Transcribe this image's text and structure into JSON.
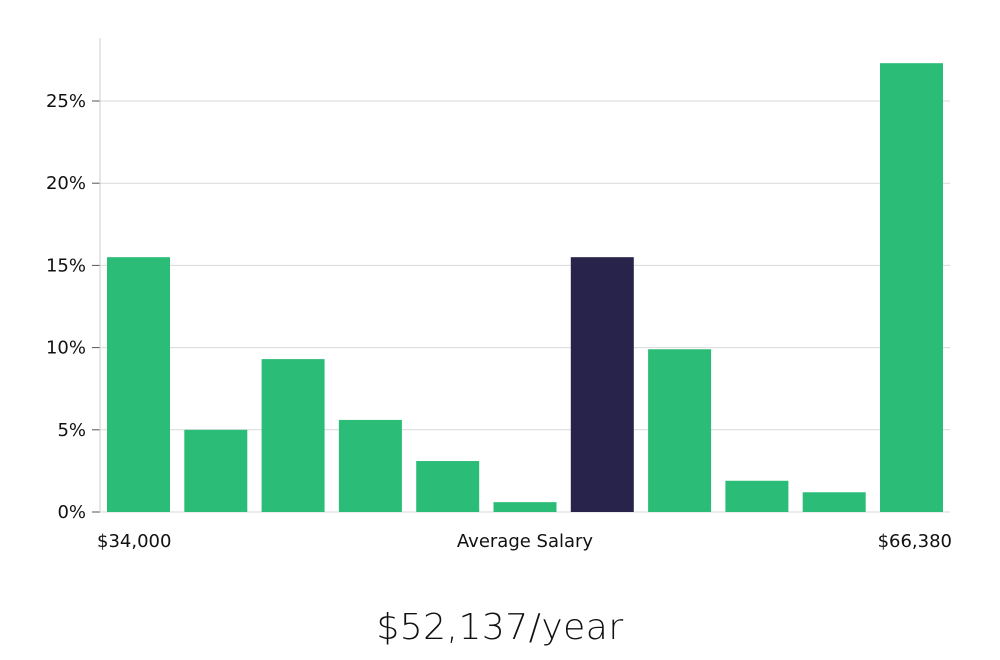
{
  "chart_data": {
    "type": "bar",
    "title": "",
    "xlabel": "Average Salary",
    "ylabel": "",
    "x_min_label": "$34,000",
    "x_max_label": "$66,380",
    "ylim": [
      0,
      28
    ],
    "yticks": [
      0,
      5,
      10,
      15,
      20,
      25
    ],
    "ytick_labels": [
      "0%",
      "5%",
      "10%",
      "15%",
      "20%",
      "25%"
    ],
    "grid": true,
    "highlight_index": 6,
    "colors": {
      "bar": "#2bbd78",
      "highlight": "#28234a",
      "grid": "#d9d9d9",
      "axis": "#cccccc"
    },
    "values": [
      15.5,
      5.0,
      9.3,
      5.6,
      3.1,
      0.6,
      15.5,
      9.9,
      1.9,
      1.2,
      27.3
    ]
  },
  "summary": {
    "salary_text": "$52,137/year"
  }
}
